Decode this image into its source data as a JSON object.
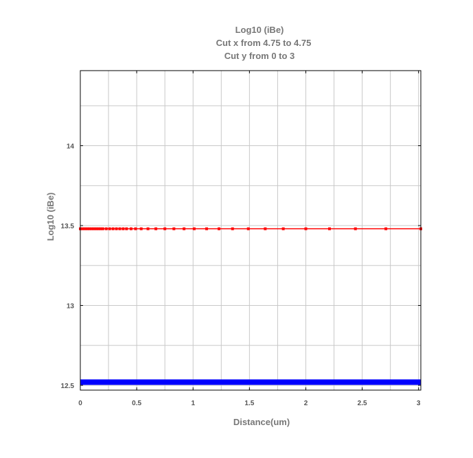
{
  "chart_data": {
    "type": "line",
    "title_lines": [
      "Log10 (iBe)",
      "Cut x from 4.75 to 4.75",
      "Cut y from 0 to 3"
    ],
    "xlabel": "Distance(um)",
    "ylabel": "Log10 (iBe)",
    "xlim": [
      0,
      3.02
    ],
    "ylim": [
      12.47,
      14.47
    ],
    "x_ticks": [
      0,
      0.5,
      1,
      1.5,
      2,
      2.5,
      3
    ],
    "x_tick_labels": [
      "0",
      "0.5",
      "1",
      "1.5",
      "2",
      "2.5",
      "3"
    ],
    "y_ticks": [
      12.5,
      13,
      13.5,
      14
    ],
    "y_tick_labels": [
      "12.5",
      "13",
      "13.5",
      "14"
    ],
    "grid": true,
    "series": [
      {
        "color": "#ff0000",
        "marker": "square",
        "x": [
          0,
          0.02,
          0.04,
          0.06,
          0.08,
          0.1,
          0.12,
          0.14,
          0.16,
          0.18,
          0.2,
          0.23,
          0.26,
          0.29,
          0.32,
          0.35,
          0.38,
          0.41,
          0.45,
          0.49,
          0.54,
          0.6,
          0.67,
          0.75,
          0.83,
          0.92,
          1.01,
          1.12,
          1.23,
          1.35,
          1.49,
          1.64,
          1.8,
          2,
          2.21,
          2.44,
          2.71,
          3.02
        ],
        "y": [
          13.48,
          13.48,
          13.48,
          13.48,
          13.48,
          13.48,
          13.48,
          13.48,
          13.48,
          13.48,
          13.48,
          13.48,
          13.48,
          13.48,
          13.48,
          13.48,
          13.48,
          13.48,
          13.48,
          13.48,
          13.48,
          13.48,
          13.48,
          13.48,
          13.48,
          13.48,
          13.48,
          13.48,
          13.48,
          13.48,
          13.48,
          13.48,
          13.48,
          13.48,
          13.48,
          13.48,
          13.48,
          13.48
        ]
      },
      {
        "color": "#0000ff",
        "marker": "none",
        "x": [
          0,
          3.02
        ],
        "y": [
          12.52,
          12.52
        ]
      }
    ]
  }
}
